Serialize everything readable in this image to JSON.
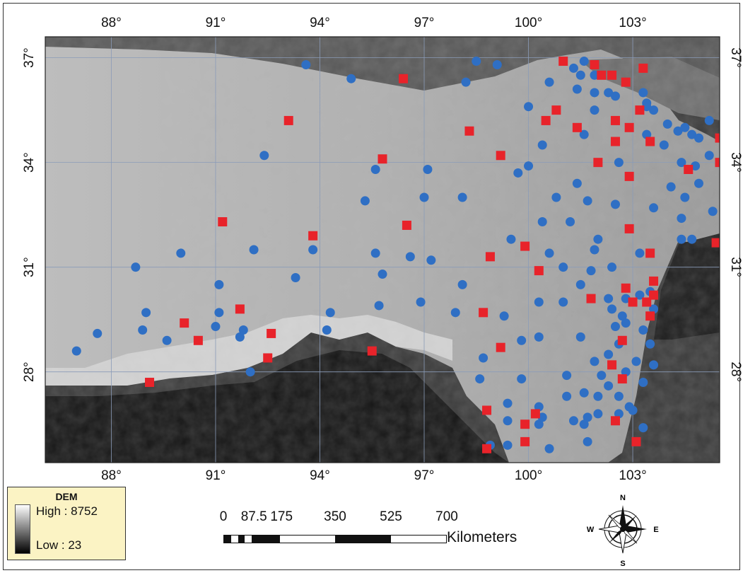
{
  "map": {
    "lon_ticks": [
      "88°",
      "91°",
      "94°",
      "97°",
      "100°",
      "103°"
    ],
    "lat_ticks": [
      "37°",
      "34°",
      "31°",
      "28°"
    ],
    "lon_values": [
      88,
      91,
      94,
      97,
      100,
      103
    ],
    "lat_values": [
      37,
      34,
      31,
      28
    ],
    "extent": {
      "lon_min": 86.1,
      "lon_max": 105.5,
      "lat_min": 25.4,
      "lat_max": 37.6
    },
    "colors": {
      "circle": "#2f6fc4",
      "square": "#e8232a",
      "grid": "#8a9bb8"
    }
  },
  "legend": {
    "title": "DEM",
    "high_label": "High : 8752",
    "low_label": "Low : 23",
    "high_value": 8752,
    "low_value": 23
  },
  "scale": {
    "labels": [
      "0",
      "87.5",
      "175",
      "350",
      "525",
      "700"
    ],
    "values_km": [
      0,
      87.5,
      175,
      350,
      525,
      700
    ],
    "unit": "Kilometers"
  },
  "compass": {
    "north": "N",
    "south": "S",
    "east": "E",
    "west": "W"
  },
  "stations": {
    "circles": [
      [
        93.6,
        36.8
      ],
      [
        94.9,
        36.4
      ],
      [
        98.5,
        36.9
      ],
      [
        99.1,
        36.8
      ],
      [
        98.2,
        36.3
      ],
      [
        100.6,
        36.3
      ],
      [
        101.3,
        36.7
      ],
      [
        101.6,
        36.9
      ],
      [
        101.5,
        36.5
      ],
      [
        101.9,
        36.5
      ],
      [
        101.4,
        36.1
      ],
      [
        101.9,
        36.0
      ],
      [
        102.3,
        36.0
      ],
      [
        102.5,
        35.9
      ],
      [
        103.3,
        36.0
      ],
      [
        103.4,
        35.7
      ],
      [
        103.4,
        35.6
      ],
      [
        103.6,
        35.5
      ],
      [
        100.0,
        35.6
      ],
      [
        101.9,
        35.5
      ],
      [
        104.0,
        35.1
      ],
      [
        104.3,
        34.9
      ],
      [
        104.5,
        35.0
      ],
      [
        104.7,
        34.8
      ],
      [
        104.9,
        34.7
      ],
      [
        105.2,
        35.2
      ],
      [
        101.6,
        34.8
      ],
      [
        103.4,
        34.8
      ],
      [
        103.9,
        34.5
      ],
      [
        100.4,
        34.5
      ],
      [
        100.0,
        33.9
      ],
      [
        99.7,
        33.7
      ],
      [
        102.6,
        34.0
      ],
      [
        104.4,
        34.0
      ],
      [
        104.8,
        33.9
      ],
      [
        105.2,
        34.2
      ],
      [
        104.1,
        33.3
      ],
      [
        104.5,
        33.0
      ],
      [
        104.9,
        33.4
      ],
      [
        105.3,
        32.6
      ],
      [
        103.6,
        32.7
      ],
      [
        104.4,
        32.4
      ],
      [
        104.4,
        31.8
      ],
      [
        104.7,
        31.8
      ],
      [
        92.4,
        34.2
      ],
      [
        95.6,
        33.8
      ],
      [
        97.1,
        33.8
      ],
      [
        95.3,
        32.9
      ],
      [
        97.0,
        33.0
      ],
      [
        98.1,
        33.0
      ],
      [
        100.8,
        33.0
      ],
      [
        101.4,
        33.4
      ],
      [
        101.7,
        32.9
      ],
      [
        102.5,
        32.8
      ],
      [
        100.4,
        32.3
      ],
      [
        101.2,
        32.3
      ],
      [
        102.0,
        31.8
      ],
      [
        99.5,
        31.8
      ],
      [
        100.6,
        31.4
      ],
      [
        101.0,
        31.0
      ],
      [
        101.9,
        31.5
      ],
      [
        101.8,
        30.9
      ],
      [
        102.4,
        31.0
      ],
      [
        103.2,
        31.4
      ],
      [
        90.0,
        31.4
      ],
      [
        92.1,
        31.5
      ],
      [
        93.8,
        31.5
      ],
      [
        95.6,
        31.4
      ],
      [
        96.6,
        31.3
      ],
      [
        97.2,
        31.2
      ],
      [
        98.1,
        30.5
      ],
      [
        95.8,
        30.8
      ],
      [
        93.3,
        30.7
      ],
      [
        91.1,
        30.5
      ],
      [
        88.7,
        31.0
      ],
      [
        101.5,
        30.5
      ],
      [
        102.3,
        30.1
      ],
      [
        102.8,
        30.1
      ],
      [
        103.2,
        30.2
      ],
      [
        103.5,
        30.3
      ],
      [
        103.6,
        29.8
      ],
      [
        100.3,
        30.0
      ],
      [
        101.0,
        30.0
      ],
      [
        102.4,
        29.8
      ],
      [
        102.7,
        29.6
      ],
      [
        103.3,
        29.2
      ],
      [
        101.5,
        29.0
      ],
      [
        102.5,
        29.3
      ],
      [
        102.8,
        29.4
      ],
      [
        103.5,
        28.8
      ],
      [
        94.3,
        29.7
      ],
      [
        95.7,
        29.9
      ],
      [
        96.9,
        30.0
      ],
      [
        97.9,
        29.7
      ],
      [
        99.3,
        29.6
      ],
      [
        100.3,
        29.0
      ],
      [
        99.8,
        28.9
      ],
      [
        102.3,
        28.5
      ],
      [
        102.6,
        28.8
      ],
      [
        103.1,
        28.3
      ],
      [
        103.6,
        28.2
      ],
      [
        89.0,
        29.7
      ],
      [
        88.9,
        29.2
      ],
      [
        87.6,
        29.1
      ],
      [
        87.0,
        28.6
      ],
      [
        89.6,
        28.9
      ],
      [
        91.1,
        29.7
      ],
      [
        91.0,
        29.3
      ],
      [
        91.7,
        29.0
      ],
      [
        91.8,
        29.2
      ],
      [
        94.2,
        29.2
      ],
      [
        92.0,
        28.0
      ],
      [
        98.7,
        28.4
      ],
      [
        101.9,
        28.3
      ],
      [
        102.1,
        27.9
      ],
      [
        102.8,
        28.0
      ],
      [
        103.3,
        27.7
      ],
      [
        98.6,
        27.8
      ],
      [
        99.8,
        27.8
      ],
      [
        101.1,
        27.9
      ],
      [
        102.3,
        27.6
      ],
      [
        102.6,
        27.3
      ],
      [
        102.9,
        27.0
      ],
      [
        99.4,
        27.1
      ],
      [
        100.3,
        27.0
      ],
      [
        101.1,
        27.3
      ],
      [
        101.6,
        27.4
      ],
      [
        102.0,
        27.3
      ],
      [
        103.0,
        26.9
      ],
      [
        102.6,
        26.8
      ],
      [
        99.4,
        26.6
      ],
      [
        100.3,
        26.5
      ],
      [
        100.4,
        26.7
      ],
      [
        101.3,
        26.6
      ],
      [
        101.7,
        26.7
      ],
      [
        101.6,
        26.5
      ],
      [
        102.0,
        26.8
      ],
      [
        103.3,
        26.4
      ],
      [
        98.9,
        25.9
      ],
      [
        99.4,
        25.9
      ],
      [
        100.6,
        25.8
      ],
      [
        101.7,
        26.0
      ]
    ],
    "squares": [
      [
        96.4,
        36.4
      ],
      [
        101.0,
        36.9
      ],
      [
        101.9,
        36.8
      ],
      [
        102.1,
        36.5
      ],
      [
        102.4,
        36.5
      ],
      [
        102.8,
        36.3
      ],
      [
        103.3,
        36.7
      ],
      [
        93.1,
        35.2
      ],
      [
        98.3,
        34.9
      ],
      [
        100.8,
        35.5
      ],
      [
        100.5,
        35.2
      ],
      [
        101.4,
        35.0
      ],
      [
        102.5,
        35.2
      ],
      [
        102.9,
        35.0
      ],
      [
        103.2,
        35.5
      ],
      [
        103.5,
        34.6
      ],
      [
        104.6,
        33.8
      ],
      [
        105.5,
        34.7
      ],
      [
        105.5,
        34.0
      ],
      [
        95.8,
        34.1
      ],
      [
        99.2,
        34.2
      ],
      [
        102.0,
        34.0
      ],
      [
        102.9,
        33.6
      ],
      [
        102.5,
        34.6
      ],
      [
        91.2,
        32.3
      ],
      [
        93.8,
        31.9
      ],
      [
        96.5,
        32.2
      ],
      [
        99.9,
        31.6
      ],
      [
        100.3,
        30.9
      ],
      [
        98.9,
        31.3
      ],
      [
        103.5,
        31.4
      ],
      [
        105.4,
        31.7
      ],
      [
        105.7,
        32.0
      ],
      [
        102.9,
        32.1
      ],
      [
        91.7,
        29.8
      ],
      [
        90.1,
        29.4
      ],
      [
        90.5,
        28.9
      ],
      [
        92.6,
        29.1
      ],
      [
        92.5,
        28.4
      ],
      [
        89.1,
        27.7
      ],
      [
        95.5,
        28.6
      ],
      [
        98.7,
        29.7
      ],
      [
        99.2,
        28.7
      ],
      [
        101.8,
        30.1
      ],
      [
        102.8,
        30.4
      ],
      [
        103.0,
        30.0
      ],
      [
        103.4,
        30.0
      ],
      [
        103.6,
        30.6
      ],
      [
        103.6,
        30.2
      ],
      [
        103.5,
        29.6
      ],
      [
        102.7,
        28.9
      ],
      [
        102.4,
        28.2
      ],
      [
        102.7,
        27.8
      ],
      [
        98.8,
        26.9
      ],
      [
        99.9,
        26.5
      ],
      [
        100.2,
        26.8
      ],
      [
        102.5,
        26.6
      ],
      [
        103.1,
        26.0
      ],
      [
        98.8,
        25.8
      ],
      [
        99.9,
        26.0
      ]
    ]
  }
}
